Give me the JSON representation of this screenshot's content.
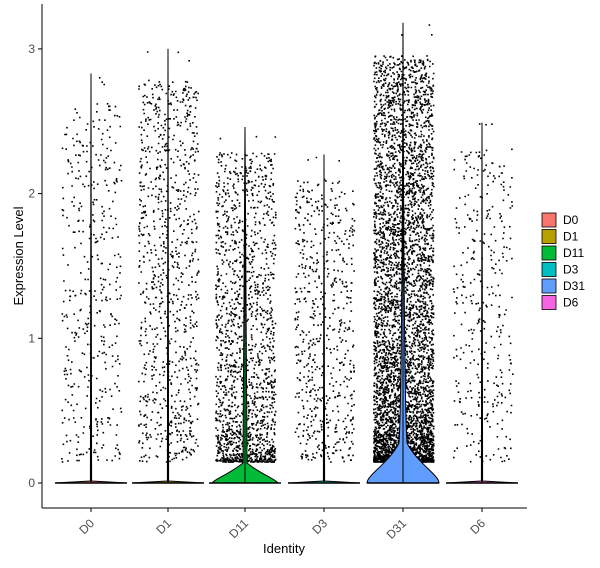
{
  "chart_data": {
    "type": "violin",
    "xlabel": "Identity",
    "ylabel": "Expression Level",
    "ylim": [
      -0.18,
      3.25
    ],
    "yticks": [
      0,
      1,
      2,
      3
    ],
    "categories": [
      "D0",
      "D1",
      "D11",
      "D3",
      "D31",
      "D6"
    ],
    "colors": [
      "#F8766D",
      "#B79F00",
      "#00BA38",
      "#00BFC4",
      "#619CFF",
      "#F564E3"
    ],
    "max_values": [
      2.83,
      3.0,
      2.46,
      2.27,
      3.18,
      2.49
    ],
    "violin_peak_width": [
      0.01,
      0.01,
      0.35,
      0.01,
      0.95,
      0.01
    ],
    "approx_expressing_points": [
      420,
      900,
      1600,
      600,
      5200,
      350
    ],
    "grid": false,
    "legend": {
      "position": "right",
      "entries": [
        "D0",
        "D1",
        "D11",
        "D3",
        "D31",
        "D6"
      ]
    }
  }
}
